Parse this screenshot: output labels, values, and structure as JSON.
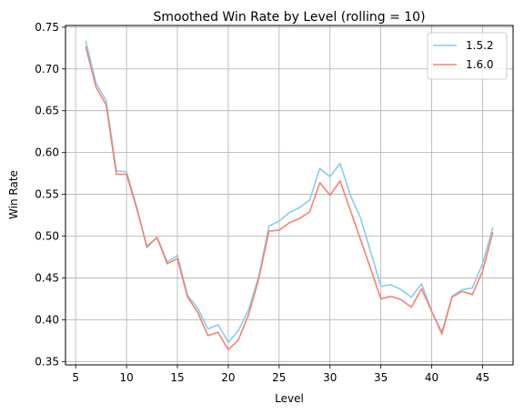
{
  "chart_data": {
    "type": "line",
    "title": "Smoothed Win Rate by Level (rolling = 10)",
    "xlabel": "Level",
    "ylabel": "Win Rate",
    "xlim": [
      4,
      48
    ],
    "ylim": [
      0.346,
      0.752
    ],
    "xticks": [
      5,
      10,
      15,
      20,
      25,
      30,
      35,
      40,
      45
    ],
    "yticks": [
      0.35,
      0.4,
      0.45,
      0.5,
      0.55,
      0.6,
      0.65,
      0.7,
      0.75
    ],
    "ytick_labels": [
      "0.35",
      "0.40",
      "0.45",
      "0.50",
      "0.55",
      "0.60",
      "0.65",
      "0.70",
      "0.75"
    ],
    "grid": true,
    "legend_position": "top-right",
    "x": [
      6,
      7,
      8,
      9,
      10,
      11,
      12,
      13,
      14,
      15,
      16,
      17,
      18,
      19,
      20,
      21,
      22,
      23,
      24,
      25,
      26,
      27,
      28,
      29,
      30,
      31,
      32,
      33,
      34,
      35,
      36,
      37,
      38,
      39,
      40,
      41,
      42,
      43,
      44,
      45,
      46
    ],
    "series": [
      {
        "name": "1.5.2",
        "color": "#87CEEB",
        "values": [
          0.733,
          0.683,
          0.662,
          0.578,
          0.577,
          0.535,
          0.486,
          0.499,
          0.469,
          0.477,
          0.429,
          0.414,
          0.389,
          0.394,
          0.373,
          0.387,
          0.412,
          0.452,
          0.512,
          0.518,
          0.528,
          0.534,
          0.543,
          0.581,
          0.571,
          0.587,
          0.549,
          0.522,
          0.481,
          0.44,
          0.442,
          0.436,
          0.427,
          0.443,
          0.41,
          0.385,
          0.428,
          0.436,
          0.438,
          0.467,
          0.51
        ]
      },
      {
        "name": "1.6.0",
        "color": "#FA8072",
        "values": [
          0.726,
          0.678,
          0.657,
          0.574,
          0.574,
          0.533,
          0.488,
          0.498,
          0.467,
          0.473,
          0.427,
          0.409,
          0.381,
          0.385,
          0.364,
          0.376,
          0.406,
          0.449,
          0.506,
          0.507,
          0.516,
          0.521,
          0.529,
          0.564,
          0.549,
          0.566,
          0.531,
          0.496,
          0.461,
          0.425,
          0.428,
          0.424,
          0.415,
          0.437,
          0.41,
          0.383,
          0.427,
          0.434,
          0.43,
          0.458,
          0.504
        ]
      }
    ]
  }
}
